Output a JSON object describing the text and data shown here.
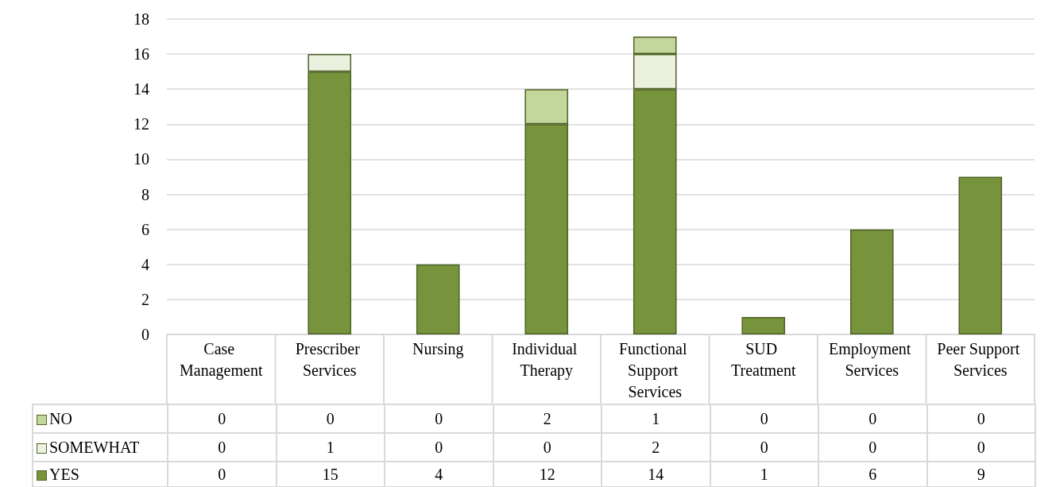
{
  "chart_data": {
    "type": "bar",
    "stacked": true,
    "categories": [
      "Case Management",
      "Prescriber Services",
      "Nursing",
      "Individual Therapy",
      "Functional Support Services",
      "SUD Treatment",
      "Employment Services",
      "Peer Support Services"
    ],
    "series": [
      {
        "name": "YES",
        "color": "#77933c",
        "values": [
          0,
          15,
          4,
          12,
          14,
          1,
          6,
          9
        ]
      },
      {
        "name": "SOMEWHAT",
        "color": "#ebf1de",
        "values": [
          0,
          1,
          0,
          0,
          2,
          0,
          0,
          0
        ]
      },
      {
        "name": "NO",
        "color": "#c3d69b",
        "values": [
          0,
          0,
          0,
          2,
          1,
          0,
          0,
          0
        ]
      }
    ],
    "ylim": [
      0,
      18
    ],
    "yticks": [
      0,
      2,
      4,
      6,
      8,
      10,
      12,
      14,
      16,
      18
    ],
    "grid": "y",
    "legend": "bottom left",
    "data_labels": true
  }
}
